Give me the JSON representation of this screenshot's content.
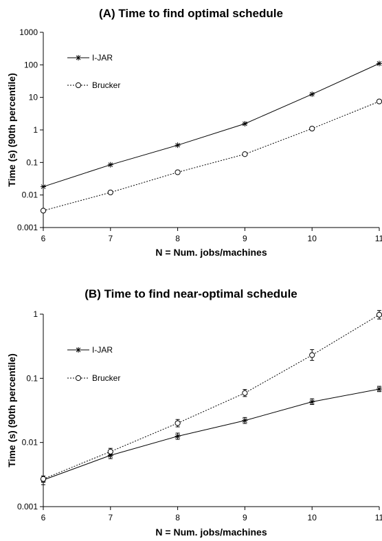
{
  "chart_data": [
    {
      "type": "line",
      "title": "(A) Time to find optimal schedule",
      "xlabel": "N = Num. jobs/machines",
      "ylabel": "Time (s) (90th percentile)",
      "x": [
        6,
        7,
        8,
        9,
        10,
        11
      ],
      "xlim": [
        6,
        11
      ],
      "ylim": [
        0.001,
        1000
      ],
      "yscale": "log",
      "yticks": [
        0.001,
        0.01,
        0.1,
        1,
        10,
        100,
        1000
      ],
      "ytick_labels": [
        "0.001",
        "0.01",
        "0.1",
        "1",
        "10",
        "100",
        "1000"
      ],
      "xtick_labels": [
        "6",
        "7",
        "8",
        "9",
        "10",
        "11"
      ],
      "legend_position": "top-left",
      "series": [
        {
          "name": "I-JAR",
          "marker": "asterisk",
          "line": "solid",
          "values": [
            0.018,
            0.085,
            0.34,
            1.55,
            12.5,
            110
          ]
        },
        {
          "name": "Brucker",
          "marker": "circle",
          "line": "dotted",
          "values": [
            0.0033,
            0.012,
            0.05,
            0.18,
            1.1,
            7.5
          ]
        }
      ]
    },
    {
      "type": "line",
      "title": "(B) Time to find near-optimal schedule",
      "xlabel": "N = Num. jobs/machines",
      "ylabel": "Time (s) (90th percentile)",
      "x": [
        6,
        7,
        8,
        9,
        10,
        11
      ],
      "xlim": [
        6,
        11
      ],
      "ylim": [
        0.001,
        1
      ],
      "yscale": "log",
      "yticks": [
        0.001,
        0.01,
        0.1,
        1
      ],
      "ytick_labels": [
        "0.001",
        "0.01",
        "0.1",
        "1"
      ],
      "xtick_labels": [
        "6",
        "7",
        "8",
        "9",
        "10",
        "11"
      ],
      "legend_position": "top-left",
      "error_bars": true,
      "series": [
        {
          "name": "I-JAR",
          "marker": "asterisk",
          "line": "solid",
          "values": [
            0.0026,
            0.0063,
            0.0125,
            0.022,
            0.043,
            0.068
          ],
          "err_low": [
            0.0022,
            0.0056,
            0.0112,
            0.0198,
            0.039,
            0.062
          ],
          "err_high": [
            0.003,
            0.0071,
            0.014,
            0.0245,
            0.048,
            0.075
          ]
        },
        {
          "name": "Brucker",
          "marker": "circle",
          "line": "dotted",
          "values": [
            0.0027,
            0.0072,
            0.02,
            0.059,
            0.23,
            0.98
          ],
          "err_low": [
            0.0024,
            0.0064,
            0.0175,
            0.052,
            0.19,
            0.84
          ],
          "err_high": [
            0.003,
            0.0081,
            0.0228,
            0.067,
            0.28,
            1.14
          ]
        }
      ]
    }
  ]
}
